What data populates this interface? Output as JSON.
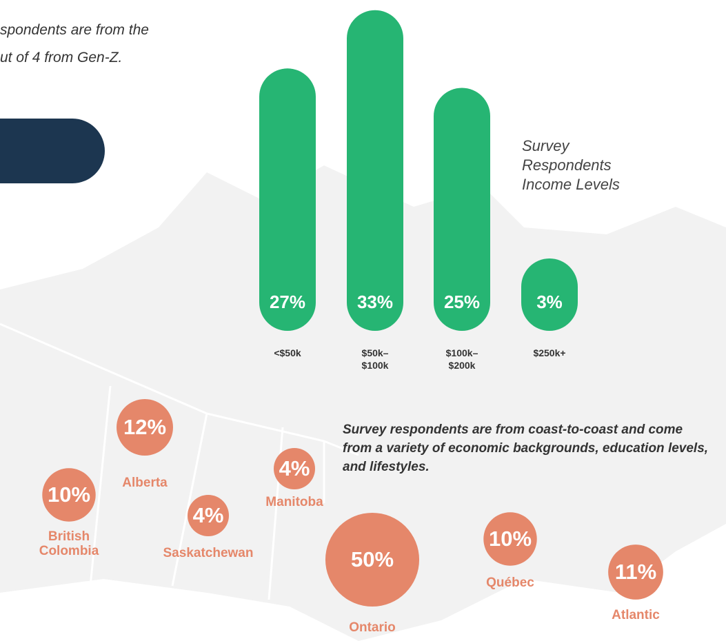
{
  "intro_text": [
    "spondents are from the",
    "ut of 4 from Gen-Z."
  ],
  "chart_data": [
    {
      "type": "bar",
      "title": "Survey Respondents Income Levels",
      "categories": [
        "<$50k",
        "$50k–$100k",
        "$100k–$200k",
        "$250k+"
      ],
      "values": [
        27,
        33,
        25,
        3
      ],
      "value_labels": [
        "27%",
        "33%",
        "25%",
        "3%"
      ],
      "color": "#26b573"
    },
    {
      "type": "bubble",
      "note": "Survey respondents are from coast-to-coast and come from a variety of economic backgrounds, education levels, and lifestyles.",
      "categories": [
        "British Colombia",
        "Alberta",
        "Saskatchewan",
        "Manitoba",
        "Ontario",
        "Québec",
        "Atlantic"
      ],
      "values": [
        10,
        12,
        4,
        4,
        50,
        10,
        11
      ],
      "value_labels": [
        "10%",
        "12%",
        "4%",
        "4%",
        "50%",
        "10%",
        "11%"
      ],
      "color": "#e5876a"
    }
  ]
}
